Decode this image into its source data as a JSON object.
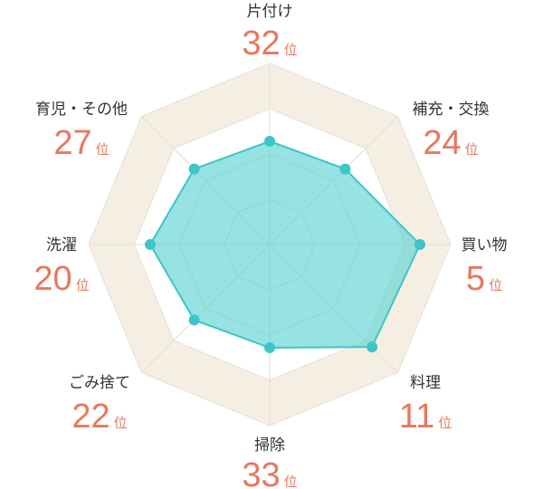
{
  "chart_data": {
    "type": "radar",
    "categories": [
      "片付け",
      "補充・交換",
      "買い物",
      "料理",
      "掃除",
      "ごみ捨て",
      "洗濯",
      "育児・その他"
    ],
    "ranks": [
      32,
      24,
      5,
      11,
      33,
      22,
      20,
      27
    ],
    "rank_unit": "位",
    "values": [
      0.57,
      0.59,
      0.83,
      0.8,
      0.57,
      0.59,
      0.66,
      0.59
    ],
    "rlim": [
      0,
      1
    ],
    "grid_levels": [
      0.25,
      0.5,
      0.75,
      1.0
    ],
    "highlight_band": [
      0.75,
      1.0
    ],
    "grid": true,
    "colors": {
      "series_line": "#3cc6c8",
      "series_fill": "#5fd3d3",
      "point": "#3cc6c8",
      "grid_line": "#e8e2d6",
      "band_fill": "#f5efe3",
      "rank_text": "#e8775e",
      "label_text": "#333333"
    }
  }
}
